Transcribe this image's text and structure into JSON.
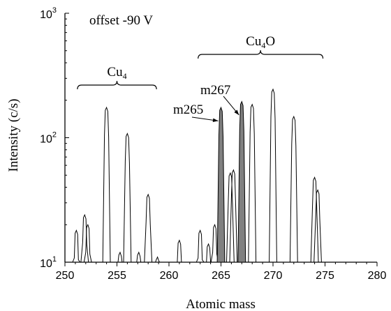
{
  "chart_data": {
    "type": "line",
    "scale": "log-y",
    "annotation_top_left": "offset -90 V",
    "xlabel": "Atomic mass",
    "ylabel": "Intensity (c/s)",
    "xlim": [
      250,
      280
    ],
    "ylim": [
      10,
      1000
    ],
    "x_ticks": [
      "250",
      "255",
      "260",
      "265",
      "270",
      "275",
      "280"
    ],
    "y_ticks": [
      {
        "value": 10,
        "base": "10",
        "exp": "1"
      },
      {
        "value": 100,
        "base": "10",
        "exp": "2"
      },
      {
        "value": 1000,
        "base": "10",
        "exp": "3"
      }
    ],
    "groups": [
      {
        "label_main": "Cu",
        "label_sub": "4",
        "label_tail": "",
        "x_from": 251.2,
        "x_to": 258.8
      },
      {
        "label_main": "Cu",
        "label_sub": "4",
        "label_tail": "O",
        "x_from": 262.8,
        "x_to": 274.8
      }
    ],
    "highlighted_peaks": [
      {
        "label": "m265",
        "center": 265,
        "peak": 175
      },
      {
        "label": "m267",
        "center": 267,
        "peak": 195
      }
    ],
    "peaks": [
      {
        "center": 251.1,
        "max": 18
      },
      {
        "center": 251.9,
        "max": 24
      },
      {
        "center": 252.2,
        "max": 20
      },
      {
        "center": 254.0,
        "max": 175
      },
      {
        "center": 256.0,
        "max": 108
      },
      {
        "center": 255.3,
        "max": 12
      },
      {
        "center": 257.1,
        "max": 12
      },
      {
        "center": 258.0,
        "max": 35
      },
      {
        "center": 258.9,
        "max": 11
      },
      {
        "center": 261.0,
        "max": 15
      },
      {
        "center": 263.0,
        "max": 18
      },
      {
        "center": 263.8,
        "max": 14
      },
      {
        "center": 264.4,
        "max": 20
      },
      {
        "center": 265.0,
        "max": 175
      },
      {
        "center": 265.9,
        "max": 52
      },
      {
        "center": 266.2,
        "max": 55
      },
      {
        "center": 267.0,
        "max": 195
      },
      {
        "center": 268.0,
        "max": 185
      },
      {
        "center": 270.0,
        "max": 245
      },
      {
        "center": 272.0,
        "max": 148
      },
      {
        "center": 274.0,
        "max": 48
      },
      {
        "center": 274.3,
        "max": 38
      }
    ],
    "colors": {
      "line": "#000000",
      "highlight_fill": "#808080",
      "background": "#ffffff"
    },
    "grid": false,
    "legend": "none"
  }
}
